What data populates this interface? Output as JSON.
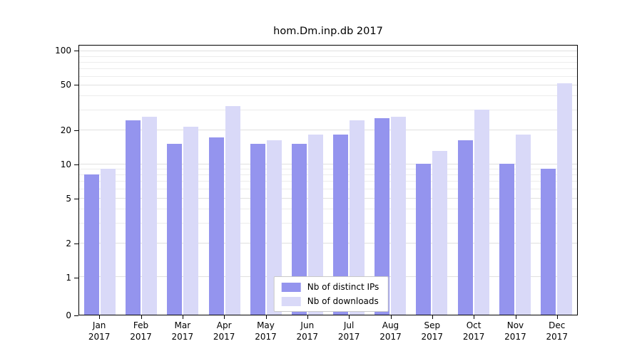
{
  "title": "hom.Dm.inp.db 2017",
  "chart_data": {
    "type": "bar",
    "title": "hom.Dm.inp.db 2017",
    "xlabel": "",
    "ylabel": "",
    "categories": [
      "Jan",
      "Feb",
      "Mar",
      "Apr",
      "May",
      "Jun",
      "Jul",
      "Aug",
      "Sep",
      "Oct",
      "Nov",
      "Dec"
    ],
    "year_label": "2017",
    "series": [
      {
        "name": "Nb of distinct IPs",
        "key": "distinct-ips",
        "color": "#9494ee",
        "values": [
          8,
          24,
          15,
          17,
          15,
          15,
          18,
          25,
          10,
          16,
          10,
          9
        ]
      },
      {
        "name": "Nb of downloads",
        "key": "downloads",
        "color": "#d9d9f8",
        "values": [
          9,
          26,
          21,
          32,
          16,
          18,
          24,
          26,
          13,
          30,
          18,
          51
        ]
      }
    ],
    "yticks": [
      0,
      1,
      2,
      5,
      10,
      20,
      50,
      100
    ],
    "minor_gridlines": [
      3,
      4,
      6,
      7,
      8,
      9,
      30,
      40,
      60,
      70,
      80,
      90
    ],
    "ylim": [
      0,
      100
    ],
    "yscale": "log",
    "grid": true,
    "legend_position": "lower center",
    "colors": {
      "grid": "#e6e6e6",
      "axis": "#000000",
      "background": "#ffffff"
    }
  }
}
